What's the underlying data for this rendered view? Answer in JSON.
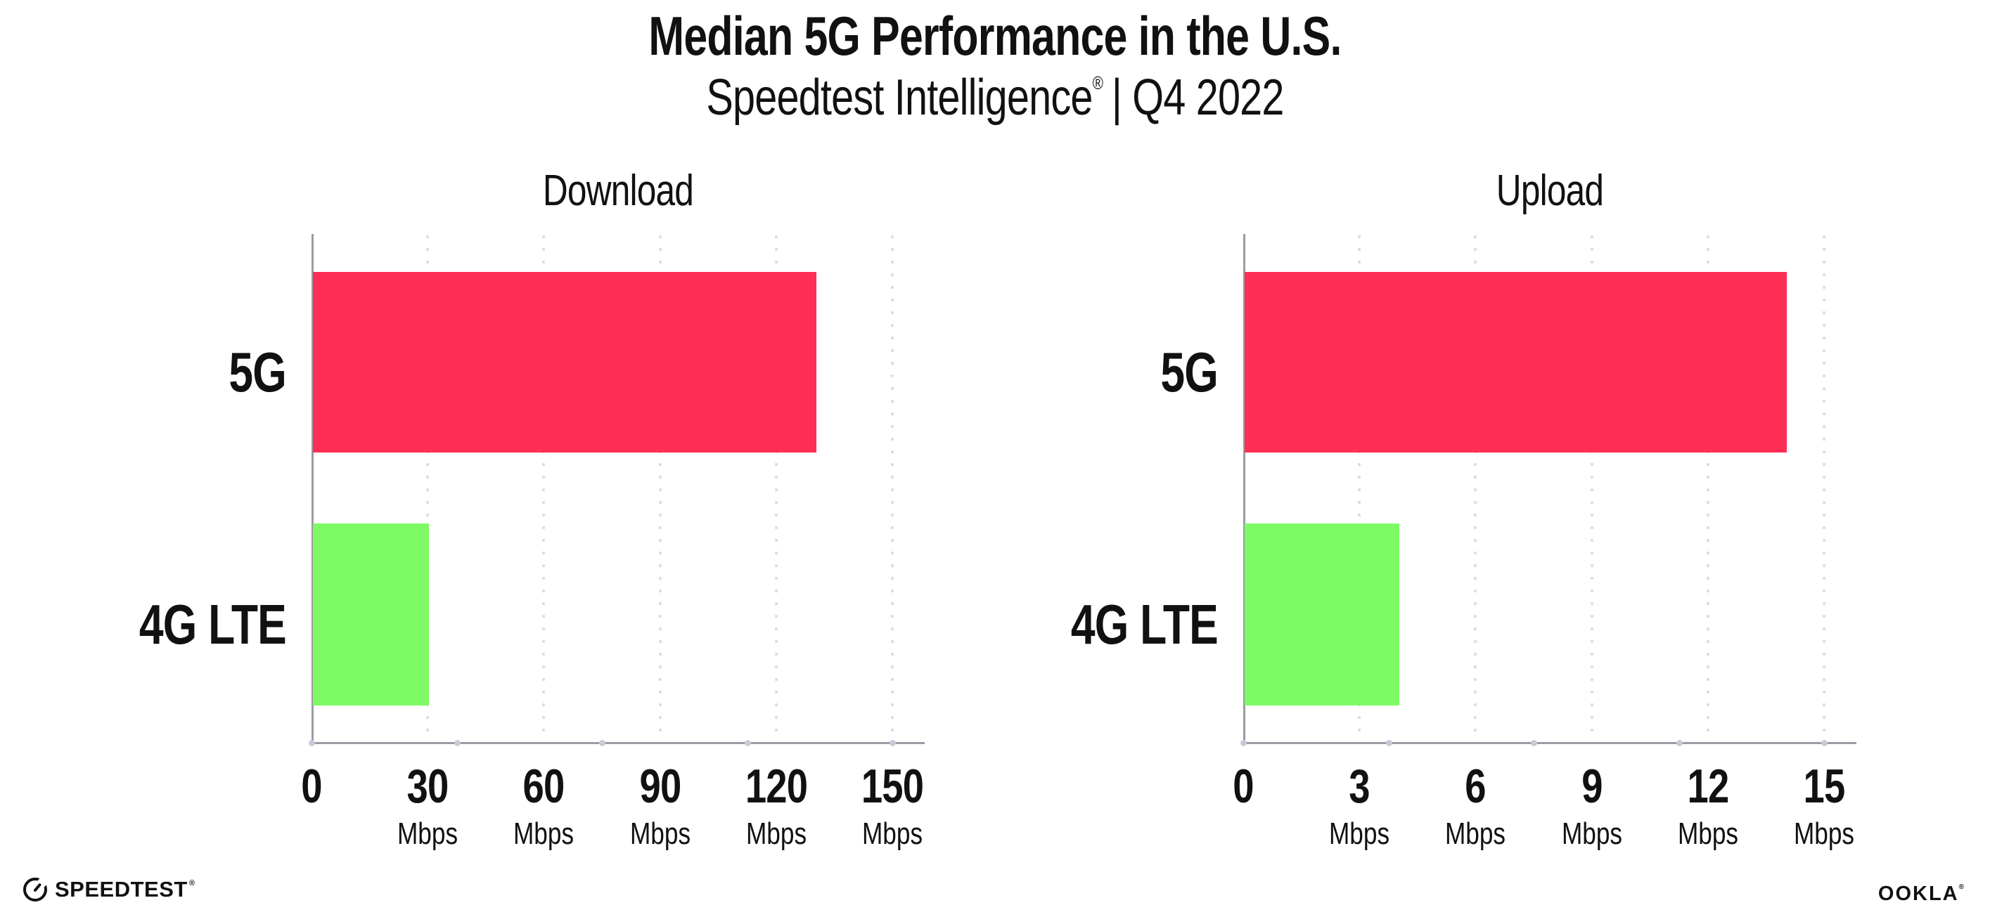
{
  "header": {
    "title": "Median 5G Performance in the U.S.",
    "subtitle": {
      "brand": "Speedtest Intelligence",
      "registered": "®",
      "rest": "| Q4 2022"
    }
  },
  "chart_data": [
    {
      "type": "bar",
      "orientation": "horizontal",
      "title": "Download",
      "categories": [
        "5G",
        "4G LTE"
      ],
      "values": [
        130,
        30
      ],
      "unit": "Mbps",
      "xlim": [
        0,
        150
      ],
      "xticks": [
        0,
        30,
        60,
        90,
        120,
        150
      ],
      "tick_labels": [
        {
          "label": "0",
          "unit": ""
        },
        {
          "label": "30",
          "unit": "Mbps"
        },
        {
          "label": "60",
          "unit": "Mbps"
        },
        {
          "label": "90",
          "unit": "Mbps"
        },
        {
          "label": "120",
          "unit": "Mbps"
        },
        {
          "label": "150",
          "unit": "Mbps"
        }
      ],
      "bar_colors": [
        "#FF2E56",
        "#7DFA64"
      ],
      "grid": "dotted-vertical-at-ticks",
      "legend": "none"
    },
    {
      "type": "bar",
      "orientation": "horizontal",
      "title": "Upload",
      "categories": [
        "5G",
        "4G LTE"
      ],
      "values": [
        14,
        4
      ],
      "unit": "Mbps",
      "xlim": [
        0,
        15
      ],
      "xticks": [
        0,
        3,
        6,
        9,
        12,
        15
      ],
      "tick_labels": [
        {
          "label": "0",
          "unit": ""
        },
        {
          "label": "3",
          "unit": "Mbps"
        },
        {
          "label": "6",
          "unit": "Mbps"
        },
        {
          "label": "9",
          "unit": "Mbps"
        },
        {
          "label": "12",
          "unit": "Mbps"
        },
        {
          "label": "15",
          "unit": "Mbps"
        }
      ],
      "bar_colors": [
        "#FF2E56",
        "#7DFA64"
      ],
      "grid": "dotted-vertical-at-ticks",
      "legend": "none"
    }
  ],
  "footer": {
    "speedtest": "SPEEDTEST",
    "speedtest_mark": "®",
    "ookla": "OOKLA",
    "ookla_mark": "®"
  },
  "colors": {
    "background": "#FFFFFF",
    "bar_5g": "#FF2E56",
    "bar_4g_lte": "#7DFA64",
    "axis": "#9B9BA3",
    "gridline_dots": "#DCDCE8",
    "axis_tick_dots": "#C9C9D8",
    "text": "#111111"
  }
}
